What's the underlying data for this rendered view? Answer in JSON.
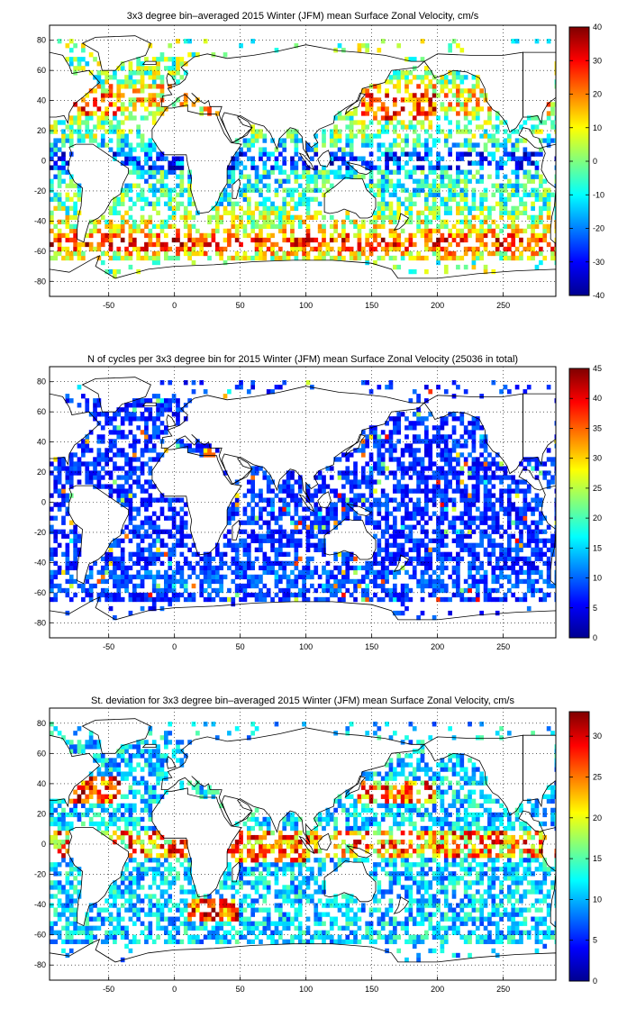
{
  "chart_data": [
    {
      "type": "heatmap",
      "title": "3x3 degree bin–averaged 2015 Winter (JFM) mean Surface Zonal Velocity, cm/s",
      "xlabel": "",
      "ylabel": "",
      "xlim": [
        -95,
        290
      ],
      "ylim": [
        -90,
        90
      ],
      "x_ticks": [
        -50,
        0,
        50,
        100,
        150,
        200,
        250
      ],
      "y_ticks": [
        80,
        60,
        40,
        20,
        0,
        -20,
        -40,
        -60,
        -80
      ],
      "colorbar": {
        "min": -40,
        "max": 40,
        "ticks": [
          40,
          30,
          20,
          10,
          0,
          -10,
          -20,
          -30,
          -40
        ]
      },
      "grid": true,
      "colormap": "jet",
      "bin_size_deg": 3
    },
    {
      "type": "heatmap",
      "title": "N of cycles per 3x3 degree bin for 2015 Winter (JFM) mean Surface Zonal Velocity (25036 in total)",
      "xlabel": "",
      "ylabel": "",
      "xlim": [
        -95,
        290
      ],
      "ylim": [
        -90,
        90
      ],
      "x_ticks": [
        -50,
        0,
        50,
        100,
        150,
        200,
        250
      ],
      "y_ticks": [
        80,
        60,
        40,
        20,
        0,
        -20,
        -40,
        -60,
        -80
      ],
      "colorbar": {
        "min": 0,
        "max": 45,
        "ticks": [
          45,
          40,
          35,
          30,
          25,
          20,
          15,
          10,
          5,
          0
        ]
      },
      "grid": true,
      "colormap": "jet",
      "bin_size_deg": 3,
      "total_cycles": 25036
    },
    {
      "type": "heatmap",
      "title": "St. deviation for 3x3 degree bin–averaged 2015 Winter (JFM) mean Surface Zonal Velocity, cm/s",
      "xlabel": "",
      "ylabel": "",
      "xlim": [
        -95,
        290
      ],
      "ylim": [
        -90,
        90
      ],
      "x_ticks": [
        -50,
        0,
        50,
        100,
        150,
        200,
        250
      ],
      "y_ticks": [
        80,
        60,
        40,
        20,
        0,
        -20,
        -40,
        -60,
        -80
      ],
      "colorbar": {
        "min": 0,
        "max": 33,
        "ticks": [
          30,
          25,
          20,
          15,
          10,
          5,
          0
        ]
      },
      "grid": true,
      "colormap": "jet",
      "bin_size_deg": 3
    }
  ]
}
